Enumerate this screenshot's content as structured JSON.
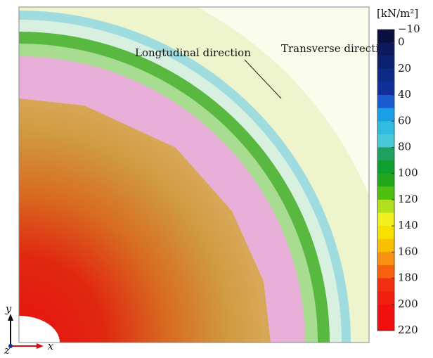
{
  "chart_data": {
    "type": "field",
    "annotations": [
      "Longtudinal direction",
      "Transverse direction"
    ],
    "axis_labels": {
      "x": "x",
      "y": "y",
      "z": "z"
    },
    "colorbar": {
      "label": "[kN/m²]",
      "lim": [
        -10,
        220
      ],
      "ticks": [
        {
          "value": -10,
          "label": "−10"
        },
        0,
        20,
        40,
        60,
        80,
        100,
        120,
        140,
        160,
        180,
        200,
        220
      ],
      "bins": [
        -10,
        0,
        10,
        20,
        30,
        40,
        50,
        60,
        70,
        80,
        90,
        100,
        110,
        120,
        130,
        140,
        150,
        160,
        170,
        180,
        190,
        200,
        210,
        220
      ],
      "colors": [
        "#0a1040",
        "#0c1a5c",
        "#0c2270",
        "#0d2a86",
        "#102f9a",
        "#1a5cd0",
        "#1aa0e8",
        "#30bce0",
        "#48c8d8",
        "#20a060",
        "#10a030",
        "#22a81a",
        "#50c010",
        "#b0e020",
        "#f0f020",
        "#f8e000",
        "#f8c000",
        "#f89010",
        "#f86010",
        "#f03010",
        "#f02010",
        "#f01010",
        "#f01010"
      ]
    }
  }
}
